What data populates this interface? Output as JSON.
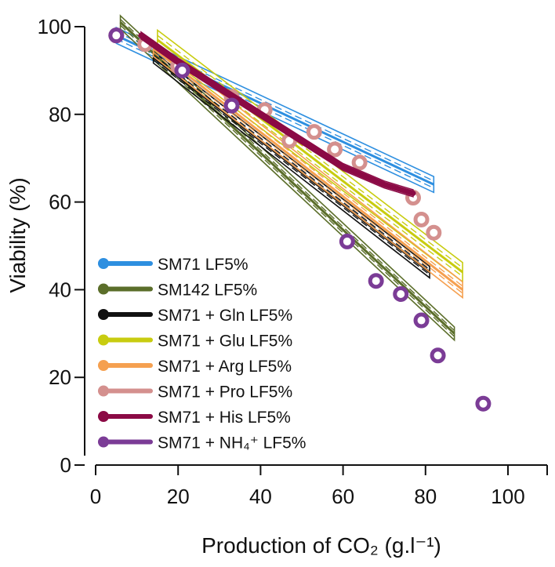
{
  "chart_data": {
    "type": "scatter",
    "xlabel": "Production of CO₂ (g.l⁻¹)",
    "ylabel": "Viability (%)",
    "xlim": [
      0,
      110
    ],
    "ylim": [
      0,
      100
    ],
    "x_ticks": [
      "0",
      "20",
      "40",
      "60",
      "80",
      "100"
    ],
    "y_ticks": [
      "0",
      "20",
      "40",
      "60",
      "80",
      "100"
    ],
    "legend_position": "bottom-left",
    "series": [
      {
        "name": "SM71 LF5%",
        "color": "#2E8FE0",
        "fit": "linear",
        "line_x": [
          5,
          82
        ],
        "line_y": [
          98,
          64
        ],
        "band": 1.8,
        "points": []
      },
      {
        "name": "SM142 LF5%",
        "color": "#5B6E2A",
        "fit": "linear",
        "line_x": [
          6,
          87
        ],
        "line_y": [
          101,
          30
        ],
        "band": 1.5,
        "points": []
      },
      {
        "name": "SM71 + Gln LF5%",
        "color": "#111111",
        "fit": "linear",
        "line_x": [
          14,
          81
        ],
        "line_y": [
          93,
          44
        ],
        "band": 1.3,
        "points": []
      },
      {
        "name": "SM71 + Glu LF5%",
        "color": "#C8CC10",
        "fit": "linear",
        "line_x": [
          15,
          89
        ],
        "line_y": [
          97,
          44
        ],
        "band": 2.2,
        "points": []
      },
      {
        "name": "SM71 + Arg LF5%",
        "color": "#F5A050",
        "fit": "linear",
        "line_x": [
          14,
          89
        ],
        "line_y": [
          95,
          40
        ],
        "band": 1.8,
        "points": []
      },
      {
        "name": "SM71 + Pro LF5%",
        "color": "#D4908E",
        "fit": "points",
        "line_x": [],
        "line_y": [],
        "band": 0,
        "points": [
          [
            5,
            98
          ],
          [
            12,
            96
          ],
          [
            20,
            91
          ],
          [
            33,
            84
          ],
          [
            41,
            81
          ],
          [
            47,
            74
          ],
          [
            53,
            76
          ],
          [
            58,
            72
          ],
          [
            64,
            69
          ],
          [
            77,
            61
          ],
          [
            79,
            56
          ],
          [
            82,
            53
          ]
        ]
      },
      {
        "name": "SM71 + His LF5%",
        "color": "#8B0A45",
        "fit": "curve",
        "line_x": [
          11,
          20,
          30,
          40,
          50,
          60,
          70,
          77
        ],
        "line_y": [
          98,
          92,
          86,
          80,
          74,
          68,
          64,
          62
        ],
        "band": 0.8,
        "points": []
      },
      {
        "name": "SM71 + NH₄⁺ LF5%",
        "color": "#7B3C96",
        "fit": "points",
        "line_x": [],
        "line_y": [],
        "band": 0,
        "points": [
          [
            5,
            98
          ],
          [
            21,
            90
          ],
          [
            33,
            82
          ],
          [
            61,
            51
          ],
          [
            68,
            42
          ],
          [
            74,
            39
          ],
          [
            79,
            33
          ],
          [
            83,
            25
          ],
          [
            94,
            14
          ]
        ]
      }
    ]
  }
}
